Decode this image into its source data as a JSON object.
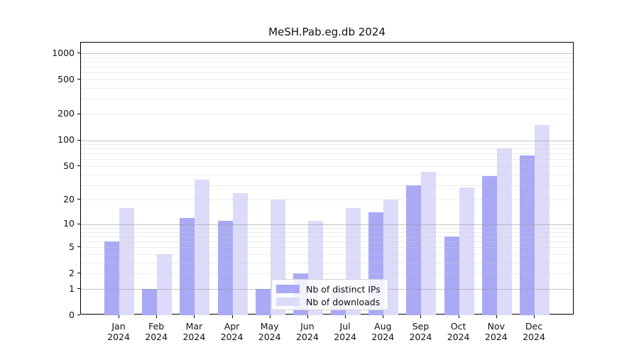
{
  "title": "MeSH.Pab.eg.db 2024",
  "chart_data": {
    "type": "bar",
    "title": "MeSH.Pab.eg.db 2024",
    "categories": [
      "Jan",
      "Feb",
      "Mar",
      "Apr",
      "May",
      "Jun",
      "Jul",
      "Aug",
      "Sep",
      "Oct",
      "Nov",
      "Dec"
    ],
    "category_year": "2024",
    "series": [
      {
        "name": "Nb of distinct IPs",
        "color": "#a9a9f5",
        "values": [
          6,
          1,
          12,
          11,
          1,
          2,
          1,
          14,
          30,
          7,
          38,
          66
        ]
      },
      {
        "name": "Nb of downloads",
        "color": "#dcdcfa",
        "values": [
          16,
          4,
          35,
          24,
          20,
          11,
          16,
          20,
          43,
          28,
          80,
          150
        ]
      }
    ],
    "xlabel": "",
    "ylabel": "",
    "y_ticks": [
      0,
      1,
      2,
      5,
      10,
      20,
      50,
      100,
      200,
      500,
      1000
    ],
    "y_scale": "log10(1+x)",
    "ylim": [
      0,
      1300
    ],
    "grid": true,
    "legend": {
      "labels": [
        "Nb of distinct IPs",
        "Nb of downloads"
      ],
      "position": "inside-bottom-center"
    }
  },
  "colors": {
    "bar_dark": "#a9a9f5",
    "bar_light": "#dcdcfa",
    "spine": "#000000",
    "grid_major": "#969696",
    "grid_minor": "#cdcdcd",
    "background": "#ffffff"
  }
}
